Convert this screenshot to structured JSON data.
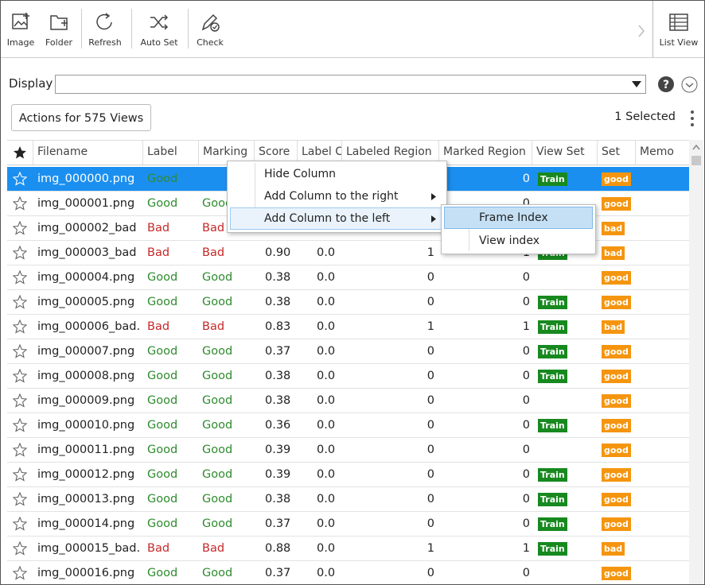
{
  "toolbar": {
    "buttons": [
      "Image",
      "Folder",
      "Refresh",
      "Auto Set",
      "Check"
    ],
    "view_button": "List View"
  },
  "display": {
    "label": "Display"
  },
  "actions_button": "Actions for 575 Views",
  "selected_text": "1 Selected",
  "table": {
    "headers": [
      "Filename",
      "Label",
      "Marking",
      "Score",
      "Label C",
      "Labeled Region",
      "Marked Region",
      "View Set",
      "Set",
      "Memo"
    ],
    "status_colors": {
      "Good": "#2e8b2e",
      "Bad": "#c62828"
    },
    "badge_colors": {
      "Train": "#17891f",
      "good": "#f5950f",
      "bad": "#f5950f"
    },
    "rows": [
      [
        "img_000000.png",
        "Good",
        null,
        null,
        null,
        null,
        "0",
        "Train",
        "good"
      ],
      [
        "img_000001.png",
        "Good",
        "Good",
        null,
        null,
        null,
        "0",
        null,
        "good"
      ],
      [
        "img_000002_bad",
        "Bad",
        "Bad",
        null,
        null,
        null,
        null,
        null,
        "bad"
      ],
      [
        "img_000003_bad",
        "Bad",
        "Bad",
        "0.90",
        "0.0",
        "1",
        "1",
        "Train",
        "bad"
      ],
      [
        "img_000004.png",
        "Good",
        "Good",
        "0.38",
        "0.0",
        "0",
        "0",
        null,
        "good"
      ],
      [
        "img_000005.png",
        "Good",
        "Good",
        "0.38",
        "0.0",
        "0",
        "0",
        "Train",
        "good"
      ],
      [
        "img_000006_bad.",
        "Bad",
        "Bad",
        "0.83",
        "0.0",
        "1",
        "1",
        "Train",
        "bad"
      ],
      [
        "img_000007.png",
        "Good",
        "Good",
        "0.37",
        "0.0",
        "0",
        "0",
        "Train",
        "good"
      ],
      [
        "img_000008.png",
        "Good",
        "Good",
        "0.38",
        "0.0",
        "0",
        "0",
        "Train",
        "good"
      ],
      [
        "img_000009.png",
        "Good",
        "Good",
        "0.38",
        "0.0",
        "0",
        "0",
        null,
        "good"
      ],
      [
        "img_000010.png",
        "Good",
        "Good",
        "0.36",
        "0.0",
        "0",
        "0",
        "Train",
        "good"
      ],
      [
        "img_000011.png",
        "Good",
        "Good",
        "0.39",
        "0.0",
        "0",
        "0",
        null,
        "good"
      ],
      [
        "img_000012.png",
        "Good",
        "Good",
        "0.39",
        "0.0",
        "0",
        "0",
        "Train",
        "good"
      ],
      [
        "img_000013.png",
        "Good",
        "Good",
        "0.38",
        "0.0",
        "0",
        "0",
        "Train",
        "good"
      ],
      [
        "img_000014.png",
        "Good",
        "Good",
        "0.37",
        "0.0",
        "0",
        "0",
        "Train",
        "good"
      ],
      [
        "img_000015_bad.",
        "Bad",
        "Bad",
        "0.88",
        "0.0",
        "1",
        "1",
        "Train",
        "bad"
      ],
      [
        "img_000016.png",
        "Good",
        "Good",
        "0.37",
        "0.0",
        "0",
        "0",
        null,
        "good"
      ]
    ]
  },
  "context_menu": {
    "items": [
      "Hide Column",
      "Add Column to the right",
      "Add Column to the left"
    ]
  },
  "submenu": {
    "items": [
      "Frame Index",
      "View index"
    ]
  }
}
